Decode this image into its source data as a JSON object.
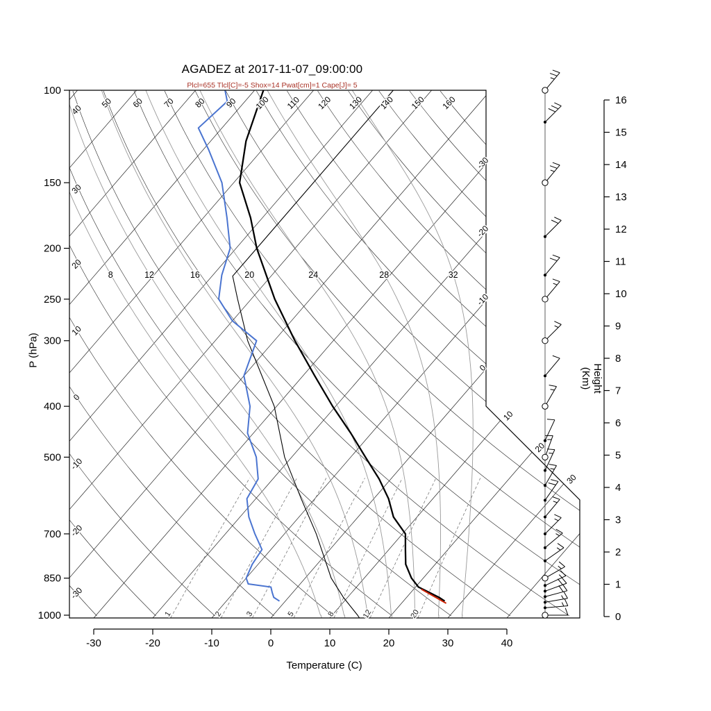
{
  "title": "AGADEZ at 2017-11-07_09:00:00",
  "subtitle": "Plcl=655 Tlcl[C]=-5 Shox=14 Pwat[cm]=1 Cape[J]= 5",
  "axes": {
    "pressure": {
      "label": "P (hPa)",
      "ticks": [
        100,
        150,
        200,
        250,
        300,
        400,
        500,
        700,
        850,
        1000
      ]
    },
    "temperature": {
      "label": "Temperature (C)",
      "ticks": [
        -30,
        -20,
        -10,
        0,
        10,
        20,
        30,
        40
      ]
    },
    "height": {
      "label": "Height (Km)",
      "ticks": [
        0,
        1,
        2,
        3,
        4,
        5,
        6,
        7,
        8,
        9,
        10,
        11,
        12,
        13,
        14,
        15,
        16
      ]
    }
  },
  "chart_data": {
    "type": "skewt-logp",
    "station": "AGADEZ",
    "datetime": "2017-11-07_09:00:00",
    "pressure_range_hpa": [
      100,
      1012
    ],
    "temperature_axis_range_c": [
      -30,
      40
    ],
    "dry_adiabat_labels": [
      -30,
      -20,
      -10,
      0,
      10,
      20,
      30,
      40,
      50,
      60,
      70,
      80,
      90,
      100,
      110,
      120,
      130,
      140,
      150,
      160
    ],
    "moist_adiabat_labels": [
      8,
      12,
      16,
      20,
      24,
      28,
      32
    ],
    "mixing_ratio_labels": [
      1,
      2,
      3,
      5,
      8,
      12,
      20
    ],
    "isotherm_edge_labels": [
      -30,
      -20,
      -10,
      0,
      10,
      20,
      30
    ],
    "temperature_profile_p_c": [
      [
        940,
        27
      ],
      [
        925,
        25.5
      ],
      [
        900,
        22.5
      ],
      [
        884,
        20.5
      ],
      [
        850,
        18
      ],
      [
        800,
        15
      ],
      [
        750,
        12.8
      ],
      [
        700,
        10.5
      ],
      [
        650,
        6
      ],
      [
        600,
        2.5
      ],
      [
        550,
        -2
      ],
      [
        500,
        -7.5
      ],
      [
        450,
        -13.5
      ],
      [
        400,
        -20.5
      ],
      [
        350,
        -28
      ],
      [
        300,
        -36.5
      ],
      [
        250,
        -46
      ],
      [
        200,
        -56.5
      ],
      [
        175,
        -62
      ],
      [
        150,
        -69
      ],
      [
        125,
        -74
      ],
      [
        100,
        -78.5
      ]
    ],
    "dewpoint_profile_p_c": [
      [
        940,
        -1
      ],
      [
        925,
        -2.5
      ],
      [
        905,
        -3.5
      ],
      [
        884,
        -4.5
      ],
      [
        872,
        -8.8
      ],
      [
        850,
        -10
      ],
      [
        800,
        -11
      ],
      [
        750,
        -11.5
      ],
      [
        700,
        -15
      ],
      [
        650,
        -18.5
      ],
      [
        600,
        -21.5
      ],
      [
        550,
        -22.5
      ],
      [
        500,
        -26
      ],
      [
        450,
        -31
      ],
      [
        400,
        -34.5
      ],
      [
        350,
        -40
      ],
      [
        300,
        -43
      ],
      [
        275,
        -50
      ],
      [
        250,
        -55.5
      ],
      [
        225,
        -58.5
      ],
      [
        200,
        -61
      ],
      [
        175,
        -66
      ],
      [
        150,
        -72
      ],
      [
        130,
        -79
      ],
      [
        118,
        -84
      ],
      [
        105,
        -83
      ],
      [
        100,
        -85
      ]
    ],
    "standard_atmosphere_p_c": [
      [
        1012,
        15
      ],
      [
        1000,
        14.3
      ],
      [
        925,
        9.3
      ],
      [
        850,
        4.4
      ],
      [
        700,
        -4.6
      ],
      [
        600,
        -12.3
      ],
      [
        500,
        -21.2
      ],
      [
        400,
        -30.4
      ],
      [
        300,
        -44.5
      ],
      [
        250,
        -52.3
      ],
      [
        226,
        -56.5
      ],
      [
        200,
        -56.5
      ],
      [
        150,
        -56.5
      ],
      [
        100,
        -56.5
      ]
    ],
    "surface_parcel_segment_p_c": [
      [
        945,
        27.3
      ],
      [
        888,
        21
      ]
    ],
    "wind_barbs": [
      {
        "p": 100,
        "marker": "circle",
        "dir": 40,
        "spd": 25
      },
      {
        "p": 115,
        "marker": "dot",
        "dir": 45,
        "spd": 30
      },
      {
        "p": 150,
        "marker": "circle",
        "dir": 40,
        "spd": 25
      },
      {
        "p": 190,
        "marker": "dot",
        "dir": 45,
        "spd": 20
      },
      {
        "p": 225,
        "marker": "dot",
        "dir": 40,
        "spd": 20
      },
      {
        "p": 250,
        "marker": "circle",
        "dir": 40,
        "spd": 15
      },
      {
        "p": 300,
        "marker": "circle",
        "dir": 45,
        "spd": 15
      },
      {
        "p": 350,
        "marker": "dot",
        "dir": 40,
        "spd": 10
      },
      {
        "p": 400,
        "marker": "circle",
        "dir": 30,
        "spd": 15
      },
      {
        "p": 465,
        "marker": "dot",
        "dir": 25,
        "spd": 10
      },
      {
        "p": 500,
        "marker": "circle",
        "dir": 20,
        "spd": 15
      },
      {
        "p": 530,
        "marker": "dot",
        "dir": 25,
        "spd": 15
      },
      {
        "p": 566,
        "marker": "dot",
        "dir": 30,
        "spd": 15
      },
      {
        "p": 604,
        "marker": "dot",
        "dir": 35,
        "spd": 20
      },
      {
        "p": 650,
        "marker": "dot",
        "dir": 40,
        "spd": 15
      },
      {
        "p": 700,
        "marker": "dot",
        "dir": 45,
        "spd": 15
      },
      {
        "p": 744,
        "marker": "dot",
        "dir": 50,
        "spd": 15
      },
      {
        "p": 788,
        "marker": "dot",
        "dir": 55,
        "spd": 15
      },
      {
        "p": 850,
        "marker": "circle",
        "dir": 60,
        "spd": 15
      },
      {
        "p": 878,
        "marker": "dot",
        "dir": 65,
        "spd": 15
      },
      {
        "p": 900,
        "marker": "dot",
        "dir": 70,
        "spd": 20
      },
      {
        "p": 922,
        "marker": "dot",
        "dir": 75,
        "spd": 20
      },
      {
        "p": 945,
        "marker": "dot",
        "dir": 80,
        "spd": 15
      },
      {
        "p": 968,
        "marker": "dot",
        "dir": 85,
        "spd": 15
      },
      {
        "p": 1000,
        "marker": "circle",
        "dir": 90,
        "spd": 10
      }
    ],
    "colors": {
      "temperature": "#000000",
      "dewpoint": "#4a74d0",
      "parcel_highlight": "#cc2200",
      "grid": "#222222",
      "moist_adiabat": "#999999",
      "mixing_ratio": "#777777",
      "subtitle": "#a93226"
    }
  }
}
